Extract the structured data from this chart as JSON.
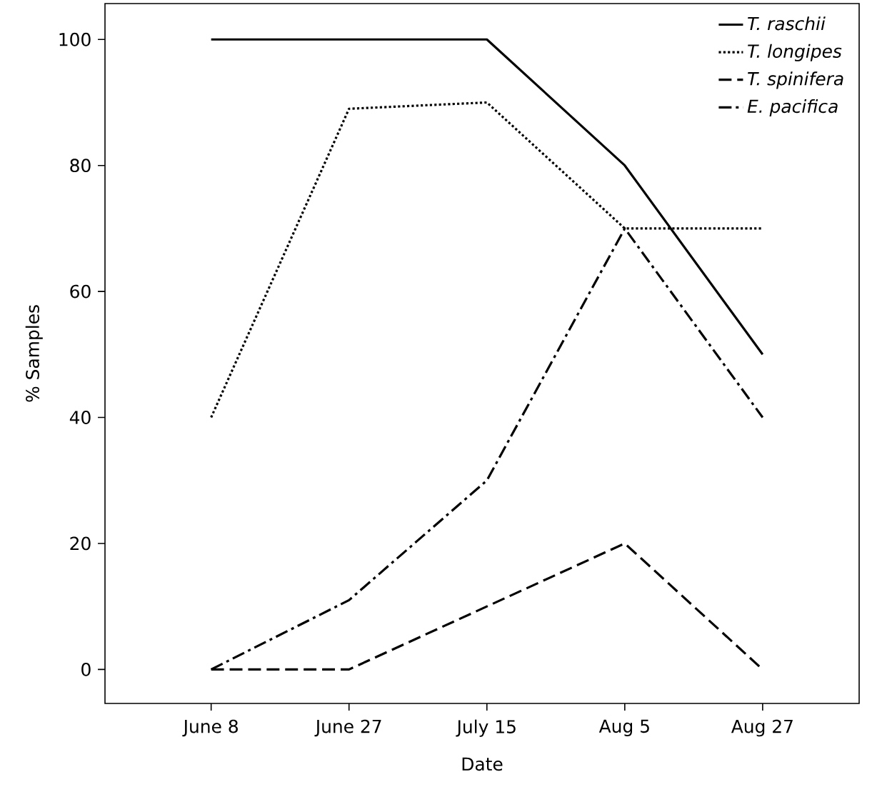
{
  "chart_data": {
    "type": "line",
    "xlabel": "Date",
    "ylabel": "% Samples",
    "categories": [
      "June 8",
      "June 27",
      "July 15",
      "Aug 5",
      "Aug 27"
    ],
    "series": [
      {
        "name": "T. raschii",
        "color": "#000000",
        "line_style": "solid",
        "values": [
          100,
          100,
          100,
          80,
          50
        ]
      },
      {
        "name": "T. longipes",
        "color": "#000000",
        "line_style": "dotted",
        "values": [
          40,
          89,
          90,
          70,
          70
        ]
      },
      {
        "name": "T. spinifera",
        "color": "#000000",
        "line_style": "dashed",
        "values": [
          0,
          0,
          10,
          20,
          0
        ]
      },
      {
        "name": "E. pacifica",
        "color": "#000000",
        "line_style": "dashdot",
        "values": [
          0,
          11,
          30,
          70,
          40
        ]
      }
    ],
    "ylim": [
      -5.4,
      105.7
    ],
    "yticks": [
      0,
      20,
      40,
      60,
      80,
      100
    ],
    "legend": "top right",
    "marker": "none",
    "grid": false
  }
}
